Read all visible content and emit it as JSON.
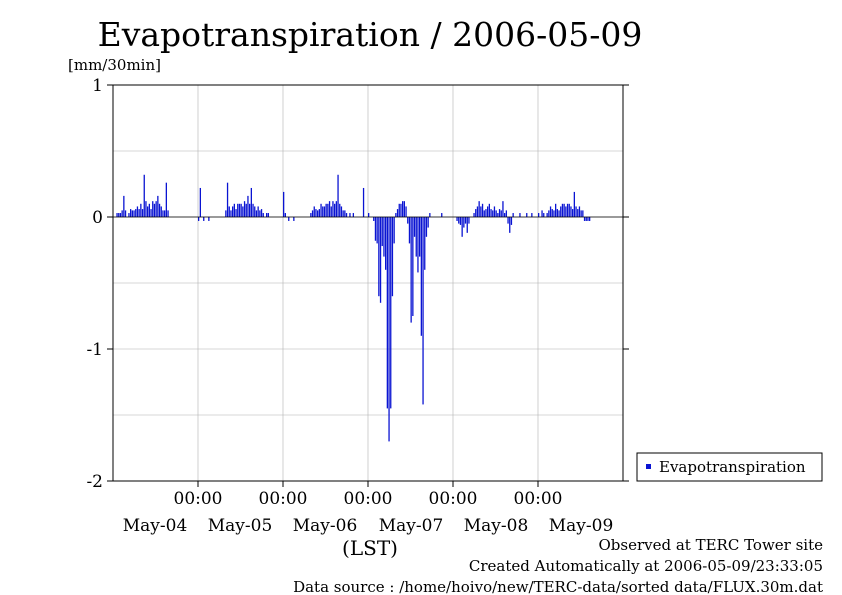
{
  "chart_data": {
    "type": "bar",
    "title": "Evapotranspiration / 2006-05-09",
    "ylabel": "[mm/30min]",
    "xlabel": "(LST)",
    "ylim": [
      -2,
      1
    ],
    "y_ticks": [
      "1",
      "0",
      "-1",
      "-2"
    ],
    "x_time_labels": [
      "00:00",
      "00:00",
      "00:00",
      "00:00",
      "00:00"
    ],
    "x_day_labels": [
      "May-04",
      "May-05",
      "May-06",
      "May-07",
      "May-08",
      "May-09"
    ],
    "grid": true,
    "legend": {
      "entries": [
        "Evapotranspiration"
      ],
      "position": "right"
    },
    "series": [
      {
        "name": "Evapotranspiration",
        "color": "#0a14d2",
        "x_range_days": [
          -3.5,
          2.5
        ],
        "interval_minutes": 30,
        "values": [
          0,
          0,
          0.03,
          0.03,
          0.03,
          0.05,
          0.16,
          0.05,
          0,
          0.03,
          0.06,
          0.05,
          0.05,
          0.06,
          0.08,
          0.06,
          0.1,
          0.06,
          0.32,
          0.12,
          0.08,
          0.1,
          0.06,
          0.12,
          0.1,
          0.12,
          0.16,
          0.1,
          0.08,
          0.05,
          0.05,
          0.26,
          0.05,
          0,
          0,
          0,
          0,
          0,
          0,
          0,
          0,
          0,
          0,
          0,
          0,
          0,
          0,
          0,
          0,
          0,
          -0.03,
          0.22,
          0,
          -0.03,
          0,
          0,
          -0.03,
          0,
          0,
          0,
          0,
          0,
          0,
          0,
          0,
          0,
          0.05,
          0.26,
          0.08,
          0.05,
          0.08,
          0.1,
          0.06,
          0.1,
          0.1,
          0.1,
          0.08,
          0.12,
          0.1,
          0.16,
          0.1,
          0.22,
          0.1,
          0.08,
          0.05,
          0.08,
          0.05,
          0.06,
          0.03,
          0,
          0.03,
          0.03,
          0,
          0,
          0,
          0,
          0,
          0,
          0,
          0,
          0.19,
          0.03,
          0,
          -0.03,
          0,
          0,
          -0.03,
          0,
          0,
          0,
          0,
          0,
          0,
          0,
          0,
          0,
          0.03,
          0.05,
          0.08,
          0.06,
          0.05,
          0.06,
          0.1,
          0.08,
          0.08,
          0.1,
          0.1,
          0.12,
          0.08,
          0.12,
          0.1,
          0.12,
          0.32,
          0.1,
          0.08,
          0.05,
          0.05,
          0.03,
          0,
          0.03,
          0,
          0.03,
          0,
          0,
          0,
          0,
          0,
          0.22,
          0,
          0,
          0.03,
          0,
          0,
          -0.03,
          -0.18,
          -0.2,
          -0.6,
          -0.65,
          -0.22,
          -0.3,
          -0.4,
          -1.45,
          -1.7,
          -1.45,
          -0.6,
          -0.2,
          0.03,
          0.06,
          0.1,
          0.1,
          0.12,
          0.12,
          0.08,
          -0.05,
          -0.2,
          -0.8,
          -0.75,
          -0.15,
          -0.3,
          -0.42,
          -0.3,
          -0.9,
          -1.42,
          -0.4,
          -0.15,
          -0.08,
          0.03,
          0,
          0,
          0,
          0,
          0,
          0,
          0.03,
          0,
          0,
          0,
          0,
          0,
          0,
          0,
          0,
          -0.03,
          -0.05,
          -0.06,
          -0.15,
          -0.08,
          -0.05,
          -0.12,
          -0.05,
          0,
          0,
          0.03,
          0.06,
          0.08,
          0.12,
          0.08,
          0.1,
          0.05,
          0.06,
          0.08,
          0.1,
          0.06,
          0.05,
          0.08,
          0.05,
          0.03,
          0.06,
          0.05,
          0.12,
          0.03,
          0.05,
          -0.05,
          -0.12,
          -0.06,
          0.03,
          0,
          0,
          0,
          0.03,
          0,
          0,
          0,
          0.03,
          0,
          0,
          0.03,
          0,
          0,
          0,
          0.03,
          0,
          0.05,
          0.03,
          0,
          0.03,
          0.05,
          0.08,
          0.06,
          0.05,
          0.1,
          0.06,
          0.05,
          0.08,
          0.1,
          0.1,
          0.08,
          0.1,
          0.1,
          0.08,
          0.06,
          0.19,
          0.08,
          0.06,
          0.08,
          0.05,
          0.05,
          -0.03,
          -0.03,
          -0.03,
          -0.03,
          0,
          0,
          0,
          0,
          0,
          0,
          0,
          0,
          0,
          0,
          0,
          0,
          0,
          0,
          0,
          0,
          0,
          0,
          0
        ]
      }
    ]
  },
  "footer": {
    "line1": "Observed at TERC Tower site",
    "line2": "Created Automatically at 2006-05-09/23:33:05",
    "line3": "Data source : /home/hoivo/new/TERC-data/sorted  data/FLUX.30m.dat"
  }
}
